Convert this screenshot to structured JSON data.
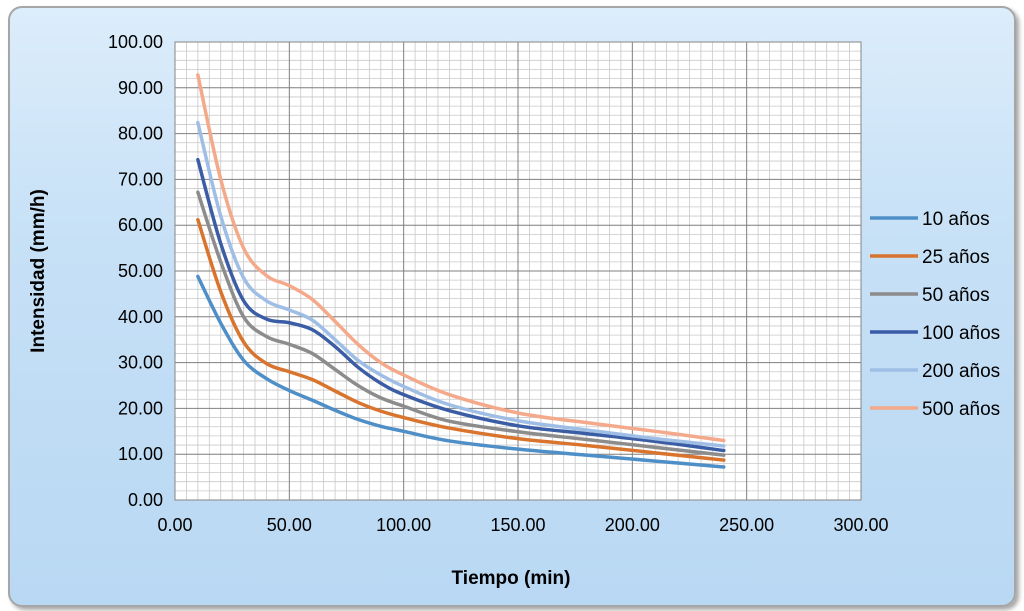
{
  "chart_data": {
    "type": "line",
    "title": "",
    "xlabel": "Tiempo (min)",
    "ylabel": "Intensidad (mm/h)",
    "xlim": [
      0,
      300
    ],
    "ylim": [
      0,
      100
    ],
    "x_ticks": [
      "0.00",
      "50.00",
      "100.00",
      "150.00",
      "200.00",
      "250.00",
      "300.00"
    ],
    "y_ticks": [
      "0.00",
      "10.00",
      "20.00",
      "30.00",
      "40.00",
      "50.00",
      "60.00",
      "70.00",
      "80.00",
      "90.00",
      "100.00"
    ],
    "grid": true,
    "legend_position": "right",
    "x": [
      10,
      20,
      30,
      40,
      50,
      60,
      70,
      80,
      90,
      100,
      120,
      150,
      180,
      210,
      240
    ],
    "series": [
      {
        "name": "10 años",
        "color": "#4f8fc7",
        "values": [
          48.8,
          38.6,
          30.5,
          26.5,
          23.9,
          21.8,
          19.6,
          17.6,
          16.1,
          15.0,
          12.9,
          11.1,
          9.8,
          8.5,
          7.2
        ]
      },
      {
        "name": "25 años",
        "color": "#d8742d",
        "values": [
          61.2,
          45.5,
          34.5,
          29.8,
          28.0,
          26.3,
          23.8,
          21.3,
          19.4,
          18.0,
          15.7,
          13.4,
          11.9,
          10.3,
          8.7
        ]
      },
      {
        "name": "50 años",
        "color": "#8c8c8c",
        "values": [
          67.2,
          52.0,
          40.0,
          35.7,
          34.0,
          32.0,
          28.5,
          25.0,
          22.3,
          20.5,
          17.2,
          14.9,
          13.2,
          11.5,
          9.8
        ]
      },
      {
        "name": "100 años",
        "color": "#3a5da5",
        "values": [
          74.3,
          56.0,
          43.5,
          39.5,
          38.7,
          37.2,
          33.5,
          29.0,
          25.5,
          23.0,
          19.5,
          16.2,
          14.5,
          12.8,
          10.8
        ]
      },
      {
        "name": "200 años",
        "color": "#9fbee6",
        "values": [
          82.4,
          62.0,
          48.5,
          43.5,
          41.5,
          39.3,
          35.0,
          30.5,
          27.3,
          24.8,
          20.8,
          17.3,
          15.3,
          13.4,
          11.8
        ]
      },
      {
        "name": "500 años",
        "color": "#f4a98a",
        "values": [
          92.8,
          70.0,
          55.0,
          49.0,
          46.8,
          43.8,
          39.0,
          34.0,
          30.0,
          27.3,
          23.0,
          19.0,
          16.9,
          15.0,
          13.0
        ]
      }
    ]
  }
}
